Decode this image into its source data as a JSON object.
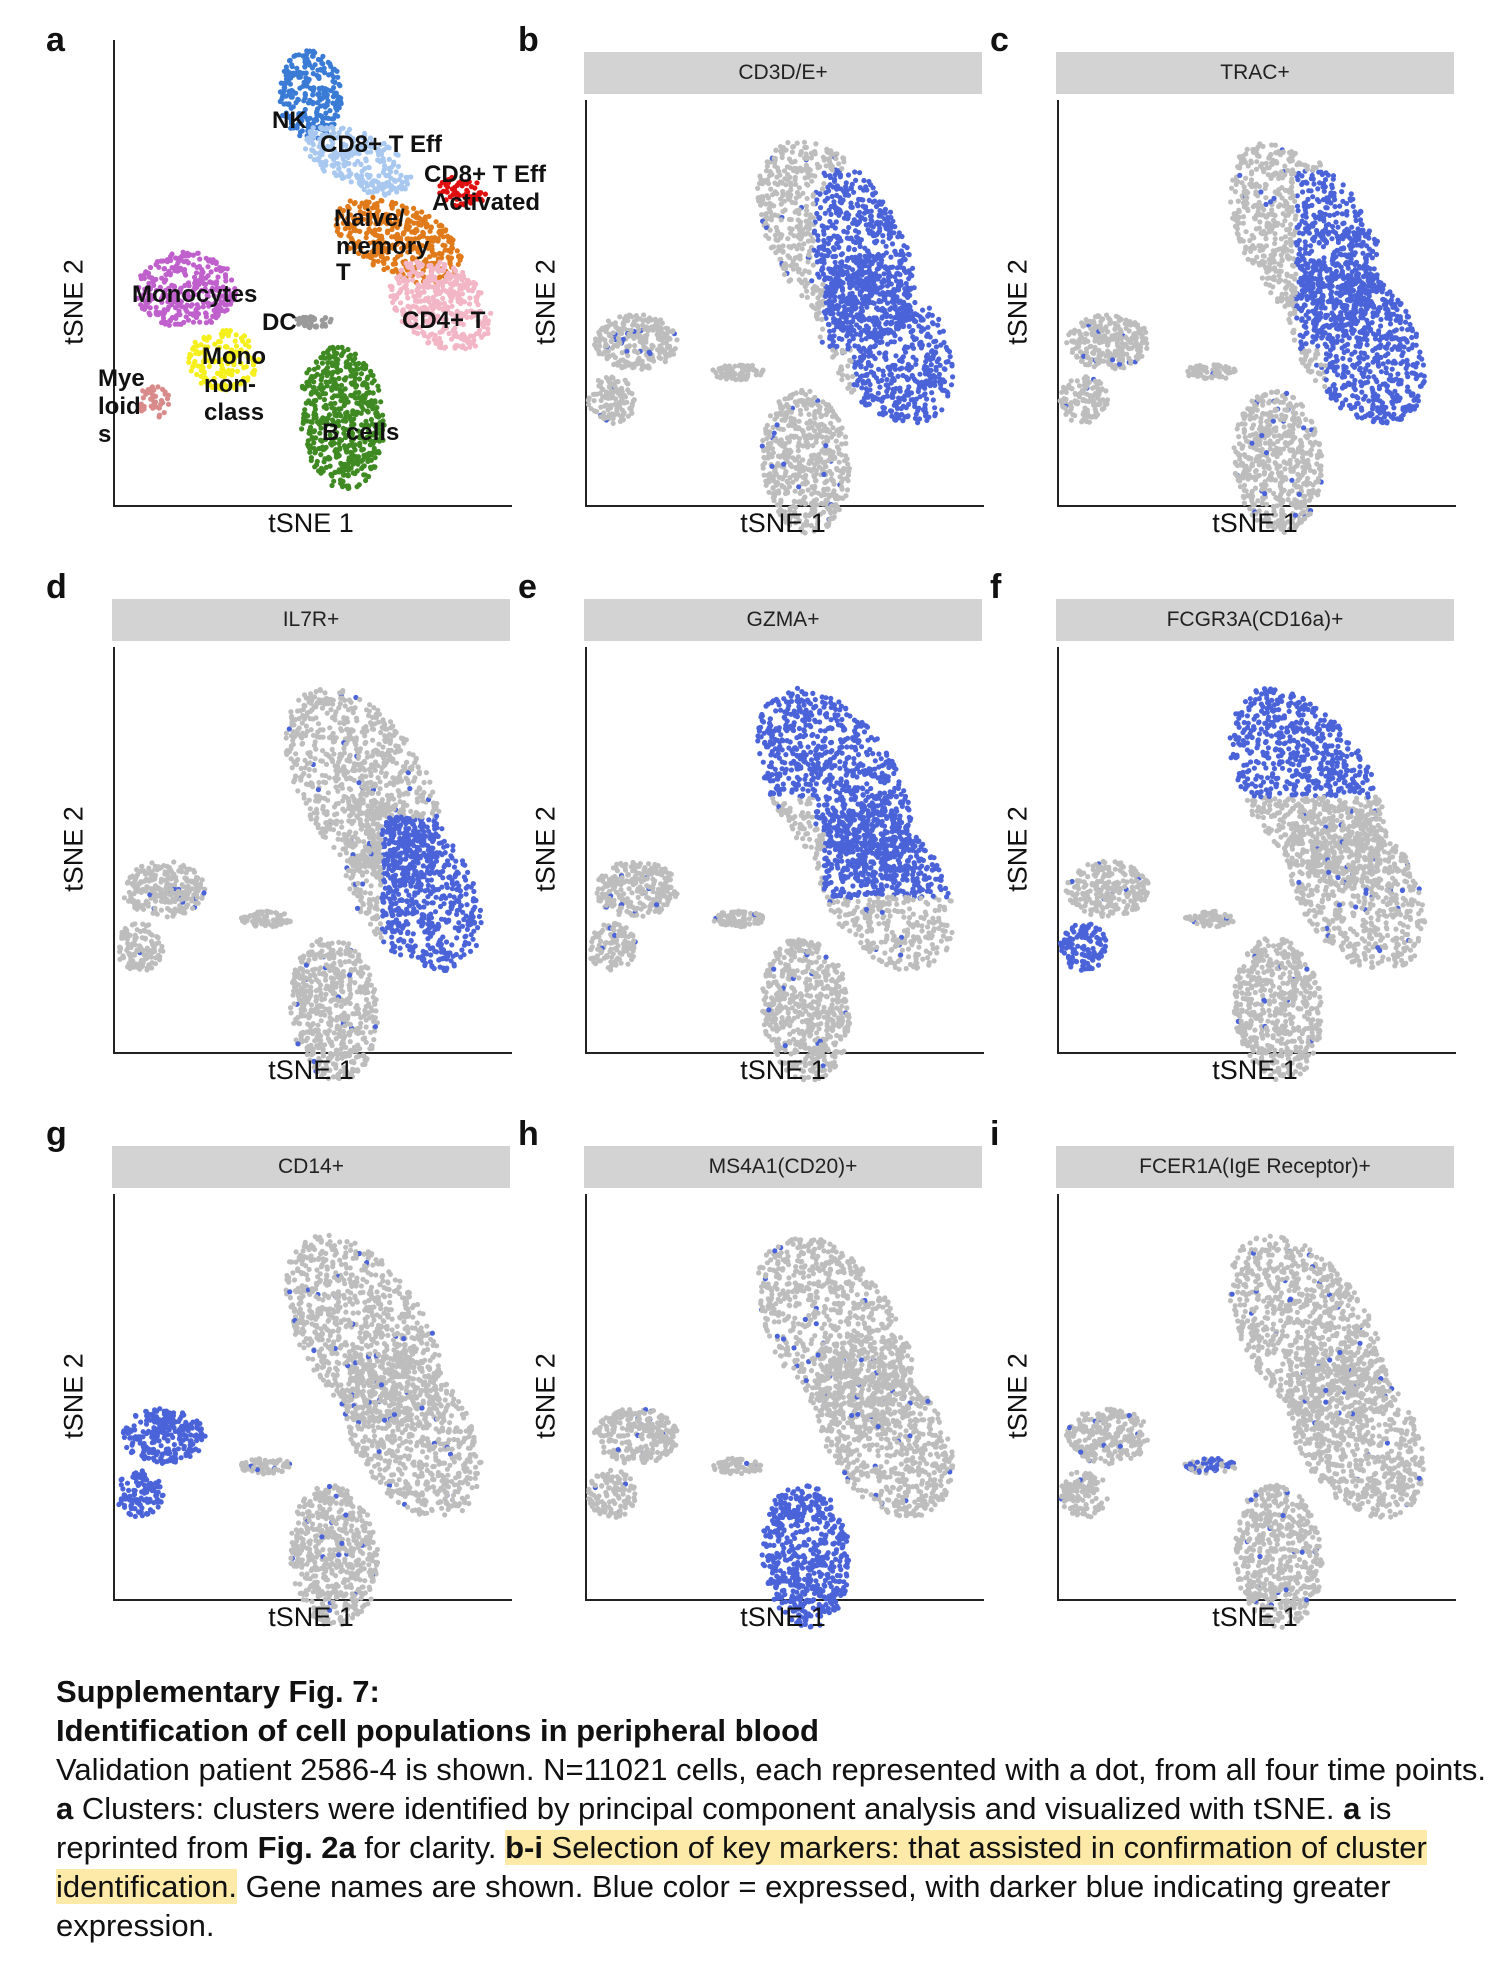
{
  "panels": [
    {
      "id": "a",
      "letter": "a",
      "title": "",
      "xlabel": "tSNE 1",
      "ylabel": "tSNE 2",
      "highlight": "clusters"
    },
    {
      "id": "b",
      "letter": "b",
      "title": "CD3D/E+",
      "xlabel": "tSNE 1",
      "ylabel": "tSNE 2",
      "highlight": [
        "naive",
        "cd4t",
        "cd8eff",
        "cd8act"
      ]
    },
    {
      "id": "c",
      "letter": "c",
      "title": "TRAC+",
      "xlabel": "tSNE 1",
      "ylabel": "tSNE 2",
      "highlight": [
        "naive",
        "cd4t",
        "cd8act"
      ]
    },
    {
      "id": "d",
      "letter": "d",
      "title": "IL7R+",
      "xlabel": "tSNE 1",
      "ylabel": "tSNE 2",
      "highlight": [
        "cd4t"
      ]
    },
    {
      "id": "e",
      "letter": "e",
      "title": "GZMA+",
      "xlabel": "tSNE 1",
      "ylabel": "tSNE 2",
      "highlight": [
        "nk",
        "cd8eff",
        "naive"
      ]
    },
    {
      "id": "f",
      "letter": "f",
      "title": "FCGR3A(CD16a)+",
      "xlabel": "tSNE 1",
      "ylabel": "tSNE 2",
      "highlight": [
        "nk",
        "mononon"
      ]
    },
    {
      "id": "g",
      "letter": "g",
      "title": "CD14+",
      "xlabel": "tSNE 1",
      "ylabel": "tSNE 2",
      "highlight": [
        "mono",
        "myeloid"
      ]
    },
    {
      "id": "h",
      "letter": "h",
      "title": "MS4A1(CD20)+",
      "xlabel": "tSNE 1",
      "ylabel": "tSNE 2",
      "highlight": [
        "bcells"
      ]
    },
    {
      "id": "i",
      "letter": "i",
      "title": "FCER1A(IgE Receptor)+",
      "xlabel": "tSNE 1",
      "ylabel": "tSNE 2",
      "highlight": [
        "dc"
      ]
    }
  ],
  "cluster_labels": {
    "nk": "NK",
    "cd8eff": "CD8+ T Eff",
    "cd8act_1": "CD8+ T Eff",
    "cd8act_2": "Activated",
    "naive_1": "Naive/",
    "naive_2": "memory",
    "naive_3": "T",
    "mono": "Monocytes",
    "dc": "DC",
    "cd4t": "CD4+ T",
    "mononon_1": "Mono",
    "mononon_2": "non-",
    "mononon_3": "class",
    "myeloid_1": "Mye",
    "myeloid_2": "loid",
    "myeloid_3": "s",
    "bcells": "B cells"
  },
  "colors": {
    "gray": "#bdbdbd",
    "blue": "#4a63d8",
    "nk": "#3a7bd5",
    "cd8eff": "#a9c8f0",
    "cd8act": "#e01010",
    "naive": "#e07a1a",
    "cd4t": "#f2b6c6",
    "mono": "#c060cc",
    "dc": "#9a9a9a",
    "mononon": "#f5ef1e",
    "myeloid": "#d98a8a",
    "bcells": "#3f8a22"
  },
  "caption": {
    "title1": "Supplementary Fig. 7:",
    "title2": "Identification of cell populations in peripheral blood",
    "s1": "Validation patient 2586-4 is shown. N=11021 cells, each represented with a dot, from all four time points. ",
    "s2_bold": "a",
    "s3": " Clusters: clusters were identified by principal component analysis and visualized with tSNE. ",
    "s4_bold": "a",
    "s5": " is reprinted from ",
    "s6_bold": "Fig. 2a",
    "s7": " for clarity. ",
    "s8_bold": "b-i",
    "s9": " Selection of key markers: that assisted in confirmation of cluster identification.",
    "s10": " Gene names are shown. Blue color = expressed, with darker blue indicating greater expression."
  }
}
